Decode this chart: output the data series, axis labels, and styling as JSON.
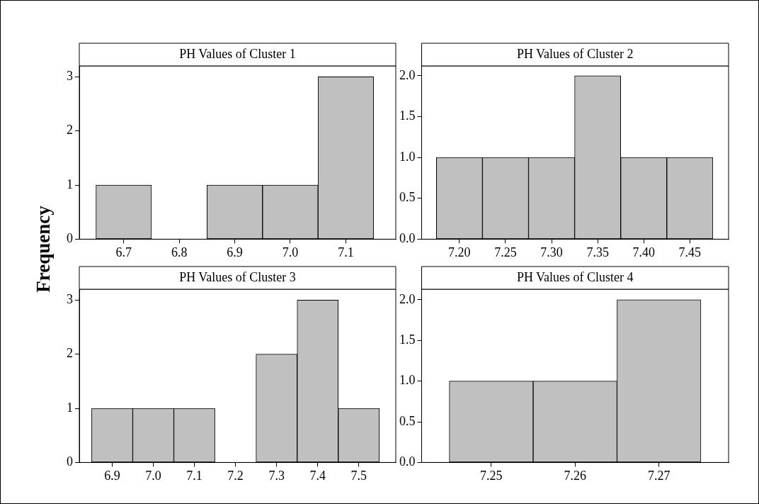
{
  "chart_data": [
    {
      "type": "histogram",
      "title": "PH Values of Cluster 1",
      "ylabel": "Frequency",
      "bins": [
        6.65,
        6.75,
        6.85,
        6.95,
        7.05,
        7.15
      ],
      "values": [
        1,
        0,
        1,
        1,
        3
      ],
      "color": "#c0c0c0",
      "xlim": [
        6.62,
        7.19
      ],
      "xticks": [
        6.7,
        6.8,
        6.9,
        {
          "value": 7.0,
          "label": "7.0"
        },
        7.1
      ],
      "ylim": [
        0,
        3.2
      ],
      "yticks": [
        0,
        1,
        2,
        3
      ],
      "grid": false,
      "legend": false
    },
    {
      "type": "histogram",
      "title": "PH Values of Cluster 2",
      "bins": [
        7.175,
        7.225,
        7.275,
        7.325,
        7.375,
        7.425,
        7.475
      ],
      "values": [
        1,
        1,
        1,
        2,
        1,
        1
      ],
      "color": "#c0c0c0",
      "xlim": [
        7.159,
        7.492
      ],
      "xticks": [
        {
          "value": 7.2,
          "label": "7.20"
        },
        7.25,
        {
          "value": 7.3,
          "label": "7.30"
        },
        7.35,
        {
          "value": 7.4,
          "label": "7.40"
        },
        7.45
      ],
      "ylim": [
        0,
        2.12
      ],
      "yticks": [
        {
          "value": 0,
          "label": "0.0"
        },
        0.5,
        {
          "value": 1,
          "label": "1.0"
        },
        1.5,
        {
          "value": 2,
          "label": "2.0"
        }
      ],
      "grid": false,
      "legend": false
    },
    {
      "type": "histogram",
      "title": "PH Values of Cluster 3",
      "bins": [
        6.85,
        6.95,
        7.05,
        7.15,
        7.25,
        7.35,
        7.45,
        7.55
      ],
      "values": [
        1,
        1,
        1,
        0,
        2,
        3,
        1
      ],
      "color": "#c0c0c0",
      "xlim": [
        6.82,
        7.59
      ],
      "xticks": [
        6.9,
        {
          "value": 7.0,
          "label": "7.0"
        },
        7.1,
        7.2,
        7.3,
        7.4,
        7.5
      ],
      "ylim": [
        0,
        3.2
      ],
      "yticks": [
        0,
        1,
        2,
        3
      ],
      "grid": false,
      "legend": false
    },
    {
      "type": "histogram",
      "title": "PH Values of Cluster 4",
      "bins": [
        7.245,
        7.255,
        7.265,
        7.275
      ],
      "values": [
        1,
        1,
        2
      ],
      "color": "#c0c0c0",
      "xlim": [
        7.2417,
        7.2783
      ],
      "xticks": [
        7.25,
        7.26,
        7.27
      ],
      "ylim": [
        0,
        2.13
      ],
      "yticks": [
        {
          "value": 0,
          "label": "0.0"
        },
        0.5,
        {
          "value": 1,
          "label": "1.0"
        },
        1.5,
        {
          "value": 2,
          "label": "2.0"
        }
      ],
      "grid": false,
      "legend": false
    }
  ]
}
